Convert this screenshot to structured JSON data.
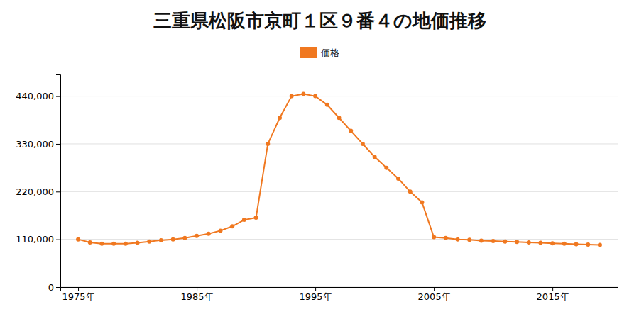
{
  "chart_data": {
    "type": "line",
    "title": "三重県松阪市京町１区９番４の地価推移",
    "x": [
      1975,
      1976,
      1977,
      1978,
      1979,
      1980,
      1981,
      1982,
      1983,
      1984,
      1985,
      1986,
      1987,
      1988,
      1989,
      1990,
      1991,
      1992,
      1993,
      1994,
      1995,
      1996,
      1997,
      1998,
      1999,
      2000,
      2001,
      2002,
      2003,
      2004,
      2005,
      2006,
      2007,
      2008,
      2009,
      2010,
      2011,
      2012,
      2013,
      2014,
      2015,
      2016,
      2017,
      2018,
      2019
    ],
    "series": [
      {
        "name": "価格",
        "color": "#f07820",
        "marker": "circle",
        "line_style": "solid",
        "values": [
          110000,
          103000,
          100000,
          100000,
          100000,
          102000,
          105000,
          108000,
          110000,
          113000,
          118000,
          123000,
          130000,
          140000,
          155000,
          160000,
          330000,
          390000,
          440000,
          445000,
          440000,
          420000,
          390000,
          360000,
          330000,
          300000,
          275000,
          250000,
          220000,
          195000,
          115000,
          113000,
          110000,
          109000,
          107000,
          106000,
          105000,
          104000,
          103000,
          102000,
          101000,
          100000,
          99000,
          98000,
          97000
        ]
      }
    ],
    "xlim": [
      1973.5,
      2020.5
    ],
    "xticks": [
      {
        "value": 1975,
        "label": "1975年"
      },
      {
        "value": 1985,
        "label": "1985年"
      },
      {
        "value": 1995,
        "label": "1995年"
      },
      {
        "value": 2005,
        "label": "2005年"
      },
      {
        "value": 2015,
        "label": "2015年"
      }
    ],
    "ylim": [
      0,
      490000
    ],
    "yticks": [
      0,
      {
        "value": 110000,
        "label": "110,000"
      },
      {
        "value": 220000,
        "label": "220,000"
      },
      {
        "value": 330000,
        "label": "330,000"
      },
      {
        "value": 440000,
        "label": "440,000"
      }
    ],
    "grid": true,
    "legend": "top"
  }
}
